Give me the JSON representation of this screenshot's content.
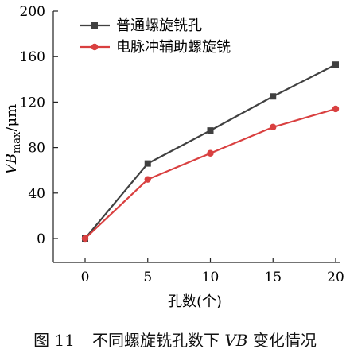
{
  "caption": {
    "label": "图 11",
    "text_before": "不同螺旋铣孔数下 ",
    "text_italic": "VB",
    "text_after": " 变化情况"
  },
  "chart_data": {
    "type": "line",
    "xlabel": "孔数(个)",
    "ylabel_main": "VB",
    "ylabel_sub": "max",
    "ylabel_unit": "/μm",
    "x": [
      0,
      5,
      10,
      15,
      20
    ],
    "xlim": [
      0,
      20
    ],
    "ylim": [
      0,
      200
    ],
    "xticks": [
      "0",
      "5",
      "10",
      "15",
      "20"
    ],
    "yticks": [
      "0",
      "40",
      "80",
      "120",
      "160",
      "200"
    ],
    "legend_position": "top-left",
    "grid": false,
    "series": [
      {
        "name": "普通螺旋铣孔",
        "values": [
          0,
          66,
          95,
          125,
          153
        ],
        "color": "#404040",
        "marker": "square"
      },
      {
        "name": "电脉冲辅助螺旋铣",
        "values": [
          0,
          52,
          75,
          98,
          114
        ],
        "color": "#d94040",
        "marker": "circle"
      }
    ]
  }
}
